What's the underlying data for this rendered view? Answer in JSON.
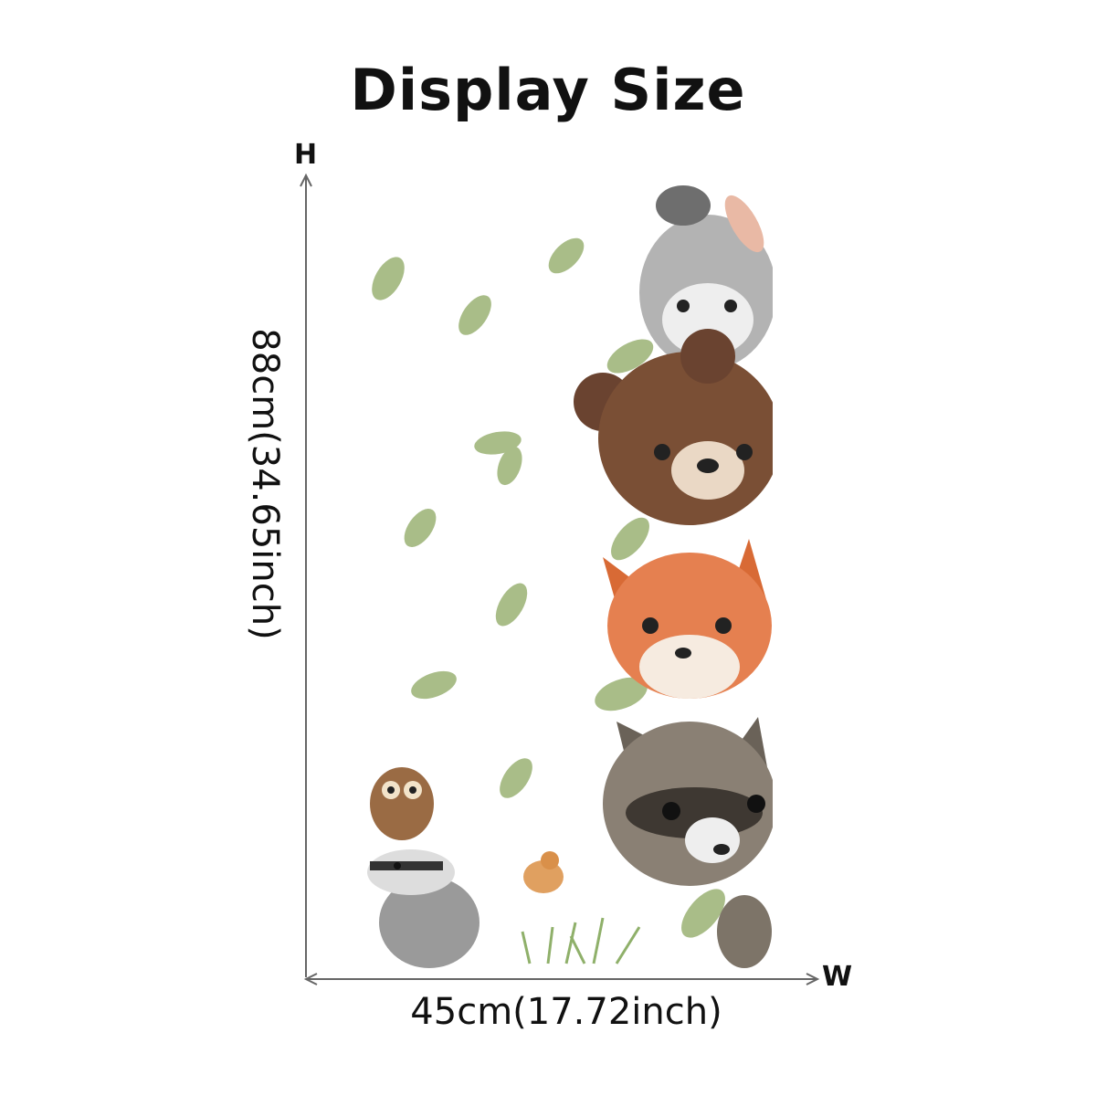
{
  "title": "Display Size",
  "height_axis": {
    "letter": "H",
    "label": "88cm(34.65inch)"
  },
  "width_axis": {
    "letter": "W",
    "label": "45cm(17.72inch)"
  },
  "colors": {
    "arrow": "#666666",
    "leaf": "#9bb27a",
    "bear": "#7a4f35",
    "fox": "#e07a45",
    "raccoon": "#7d7468",
    "rabbit": "#a9a9a9"
  }
}
